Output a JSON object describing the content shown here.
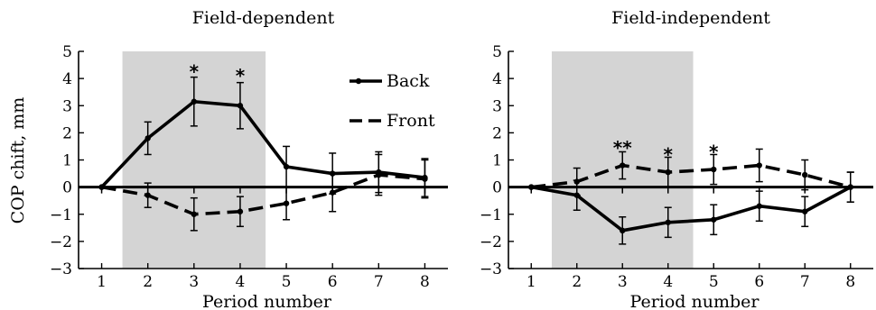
{
  "figure": {
    "ylabel": "COP chift, mm"
  },
  "legend": {
    "items": [
      {
        "label": "Back",
        "series": "Back"
      },
      {
        "label": "Front",
        "series": "Front"
      }
    ]
  },
  "chart_data": [
    {
      "type": "line",
      "title": "Field-dependent",
      "xlabel": "Period number",
      "ylabel": "COP chift, mm",
      "x": [
        1,
        2,
        3,
        4,
        5,
        6,
        7,
        8
      ],
      "xlim": [
        0.5,
        8.5
      ],
      "ylim": [
        -3,
        5
      ],
      "yticks": [
        -3,
        -2,
        -1,
        0,
        1,
        2,
        3,
        4,
        5
      ],
      "xticks": [
        1,
        2,
        3,
        4,
        5,
        6,
        7,
        8
      ],
      "shaded_region": [
        1.45,
        4.55
      ],
      "legend_position": "top-right",
      "series": [
        {
          "name": "Back",
          "style": "solid",
          "color": "#000000",
          "values": [
            0,
            1.8,
            3.15,
            3.0,
            0.75,
            0.5,
            0.55,
            0.35
          ],
          "errors": [
            0,
            0.6,
            0.9,
            0.85,
            0.75,
            0.75,
            0.75,
            0.7
          ]
        },
        {
          "name": "Front",
          "style": "dashed",
          "color": "#000000",
          "values": [
            0,
            -0.3,
            -1.0,
            -0.9,
            -0.6,
            -0.2,
            0.45,
            0.3
          ],
          "errors": [
            0,
            0.45,
            0.6,
            0.55,
            0.6,
            0.7,
            0.75,
            0.7
          ]
        }
      ],
      "annotations": [
        {
          "text": "*",
          "x": 3,
          "y": 4.35
        },
        {
          "text": "*",
          "x": 4,
          "y": 4.2
        }
      ]
    },
    {
      "type": "line",
      "title": "Field-independent",
      "xlabel": "Period number",
      "ylabel": "",
      "x": [
        1,
        2,
        3,
        4,
        5,
        6,
        7,
        8
      ],
      "xlim": [
        0.5,
        8.5
      ],
      "ylim": [
        -3,
        5
      ],
      "yticks": [
        -3,
        -2,
        -1,
        0,
        1,
        2,
        3,
        4,
        5
      ],
      "xticks": [
        1,
        2,
        3,
        4,
        5,
        6,
        7,
        8
      ],
      "shaded_region": [
        1.45,
        4.55
      ],
      "series": [
        {
          "name": "Back",
          "style": "solid",
          "color": "#000000",
          "values": [
            0,
            -0.3,
            -1.6,
            -1.3,
            -1.2,
            -0.7,
            -0.9,
            0
          ],
          "errors": [
            0,
            0.55,
            0.5,
            0.55,
            0.55,
            0.55,
            0.55,
            0.55
          ]
        },
        {
          "name": "Front",
          "style": "dashed",
          "color": "#000000",
          "values": [
            0,
            0.2,
            0.8,
            0.55,
            0.65,
            0.8,
            0.45,
            0
          ],
          "errors": [
            0,
            0.5,
            0.5,
            0.55,
            0.55,
            0.6,
            0.55,
            0.55
          ]
        }
      ],
      "annotations": [
        {
          "text": "**",
          "x": 3,
          "y": 1.55
        },
        {
          "text": "*",
          "x": 4,
          "y": 1.3
        },
        {
          "text": "*",
          "x": 5,
          "y": 1.4
        }
      ]
    }
  ]
}
